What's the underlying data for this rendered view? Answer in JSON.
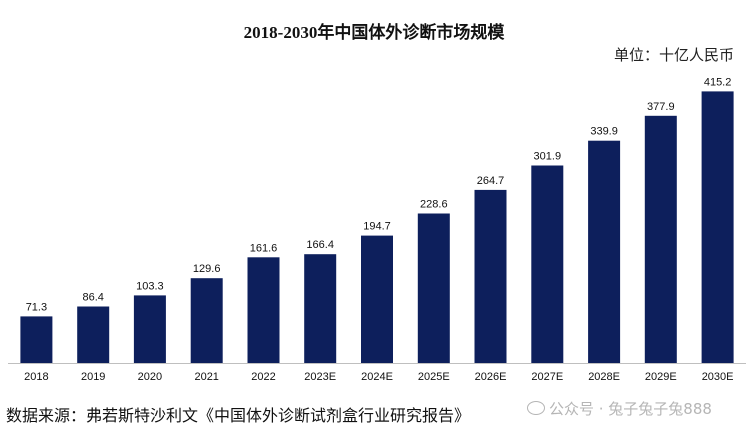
{
  "chart_data": {
    "type": "bar",
    "title": "2018-2030年中国体外诊断市场规模",
    "unit_label": "单位：十亿人民币",
    "categories": [
      "2018",
      "2019",
      "2020",
      "2021",
      "2022",
      "2023E",
      "2024E",
      "2025E",
      "2026E",
      "2027E",
      "2028E",
      "2029E",
      "2030E"
    ],
    "values": [
      71.3,
      86.4,
      103.3,
      129.6,
      161.6,
      166.4,
      194.7,
      228.6,
      264.7,
      301.9,
      339.9,
      377.9,
      415.2
    ],
    "value_labels": [
      "71.3",
      "86.4",
      "103.3",
      "129.6",
      "161.6",
      "166.4",
      "194.7",
      "228.6",
      "264.7",
      "301.9",
      "339.9",
      "377.9",
      "415.2"
    ],
    "ylim": [
      0,
      425
    ],
    "grid": false,
    "legend": "none",
    "bar_color": "#0d1f5c"
  },
  "source": "数据来源：弗若斯特沙利文《中国体外诊断试剂盒行业研究报告》",
  "watermark": "公众号 · 兔子兔子兔888"
}
